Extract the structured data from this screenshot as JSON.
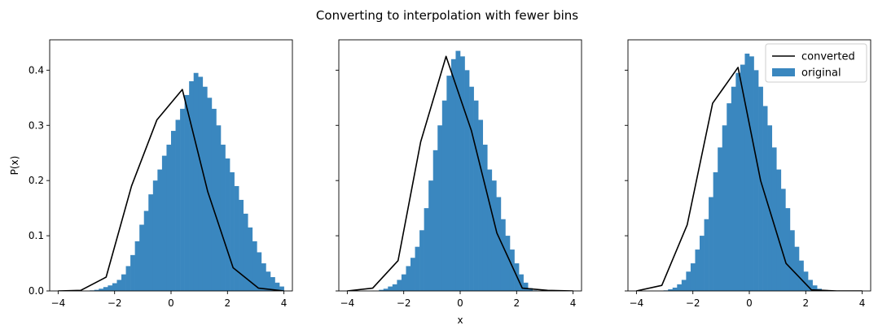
{
  "figure": {
    "suptitle": "Converting to interpolation with fewer bins",
    "colors": {
      "original": "#3a87bf",
      "converted": "#000000"
    }
  },
  "chart_data": [
    {
      "type": "bar",
      "panel": "left",
      "ylabel": "P(x)",
      "xlabel": "",
      "xlim": [
        -4.3,
        4.3
      ],
      "ylim": [
        0,
        0.455
      ],
      "xticks": [
        "−4",
        "−2",
        "0",
        "2",
        "4"
      ],
      "yticks": [
        "0.0",
        "0.1",
        "0.2",
        "0.3",
        "0.4"
      ],
      "series": [
        {
          "name": "original",
          "kind": "histogram",
          "bin_start": -4.0,
          "bin_width": 0.16,
          "values": [
            0,
            0,
            0,
            0,
            0,
            0,
            0,
            0.001,
            0.002,
            0.004,
            0.007,
            0.01,
            0.014,
            0.02,
            0.03,
            0.045,
            0.065,
            0.09,
            0.12,
            0.145,
            0.175,
            0.2,
            0.22,
            0.245,
            0.265,
            0.29,
            0.31,
            0.33,
            0.355,
            0.38,
            0.395,
            0.388,
            0.37,
            0.35,
            0.33,
            0.3,
            0.265,
            0.24,
            0.215,
            0.19,
            0.165,
            0.14,
            0.115,
            0.09,
            0.07,
            0.05,
            0.035,
            0.025,
            0.015,
            0.008,
            0,
            0
          ]
        },
        {
          "name": "converted",
          "kind": "line",
          "x": [
            -4.0,
            -3.2,
            -2.3,
            -1.4,
            -0.5,
            0.4,
            1.3,
            2.2,
            3.1,
            4.0
          ],
          "y": [
            0.0,
            0.001,
            0.025,
            0.19,
            0.31,
            0.365,
            0.18,
            0.042,
            0.005,
            0.0
          ]
        }
      ]
    },
    {
      "type": "bar",
      "panel": "center",
      "ylabel": "",
      "xlabel": "x",
      "xlim": [
        -4.3,
        4.3
      ],
      "ylim": [
        0,
        0.455
      ],
      "xticks": [
        "−4",
        "−2",
        "0",
        "2",
        "4"
      ],
      "series": [
        {
          "name": "original",
          "kind": "histogram",
          "bin_start": -4.0,
          "bin_width": 0.16,
          "values": [
            0,
            0,
            0,
            0,
            0,
            0,
            0,
            0.002,
            0.004,
            0.008,
            0.012,
            0.02,
            0.03,
            0.045,
            0.06,
            0.08,
            0.11,
            0.15,
            0.2,
            0.255,
            0.3,
            0.345,
            0.39,
            0.42,
            0.435,
            0.425,
            0.4,
            0.37,
            0.345,
            0.31,
            0.265,
            0.22,
            0.2,
            0.17,
            0.13,
            0.1,
            0.075,
            0.05,
            0.03,
            0.015,
            0.005,
            0.001,
            0,
            0,
            0,
            0,
            0,
            0,
            0,
            0,
            0,
            0
          ]
        },
        {
          "name": "converted",
          "kind": "line",
          "x": [
            -4.0,
            -3.1,
            -2.2,
            -1.4,
            -0.5,
            0.4,
            1.3,
            2.2,
            3.1,
            4.0
          ],
          "y": [
            0.0,
            0.005,
            0.055,
            0.27,
            0.425,
            0.29,
            0.105,
            0.005,
            0.001,
            0.0
          ]
        }
      ]
    },
    {
      "type": "bar",
      "panel": "right",
      "ylabel": "",
      "xlabel": "",
      "xlim": [
        -4.3,
        4.3
      ],
      "ylim": [
        0,
        0.455
      ],
      "xticks": [
        "−4",
        "−2",
        "0",
        "2",
        "4"
      ],
      "legend": {
        "placement": "top-right",
        "entries": [
          "converted",
          "original"
        ]
      },
      "series": [
        {
          "name": "original",
          "kind": "histogram",
          "bin_start": -4.0,
          "bin_width": 0.16,
          "values": [
            0,
            0,
            0,
            0,
            0,
            0,
            0.001,
            0.003,
            0.006,
            0.012,
            0.02,
            0.035,
            0.05,
            0.075,
            0.1,
            0.13,
            0.17,
            0.215,
            0.26,
            0.3,
            0.34,
            0.37,
            0.395,
            0.41,
            0.43,
            0.425,
            0.4,
            0.37,
            0.335,
            0.3,
            0.26,
            0.22,
            0.185,
            0.15,
            0.11,
            0.08,
            0.055,
            0.035,
            0.02,
            0.01,
            0.004,
            0.001,
            0,
            0,
            0,
            0,
            0,
            0,
            0,
            0,
            0,
            0
          ]
        },
        {
          "name": "converted",
          "kind": "line",
          "x": [
            -4.0,
            -3.1,
            -2.2,
            -1.3,
            -0.4,
            0.4,
            1.3,
            2.2,
            3.1,
            4.0
          ],
          "y": [
            0.0,
            0.01,
            0.12,
            0.34,
            0.405,
            0.2,
            0.05,
            0.002,
            0.0,
            0.0
          ]
        }
      ]
    }
  ]
}
